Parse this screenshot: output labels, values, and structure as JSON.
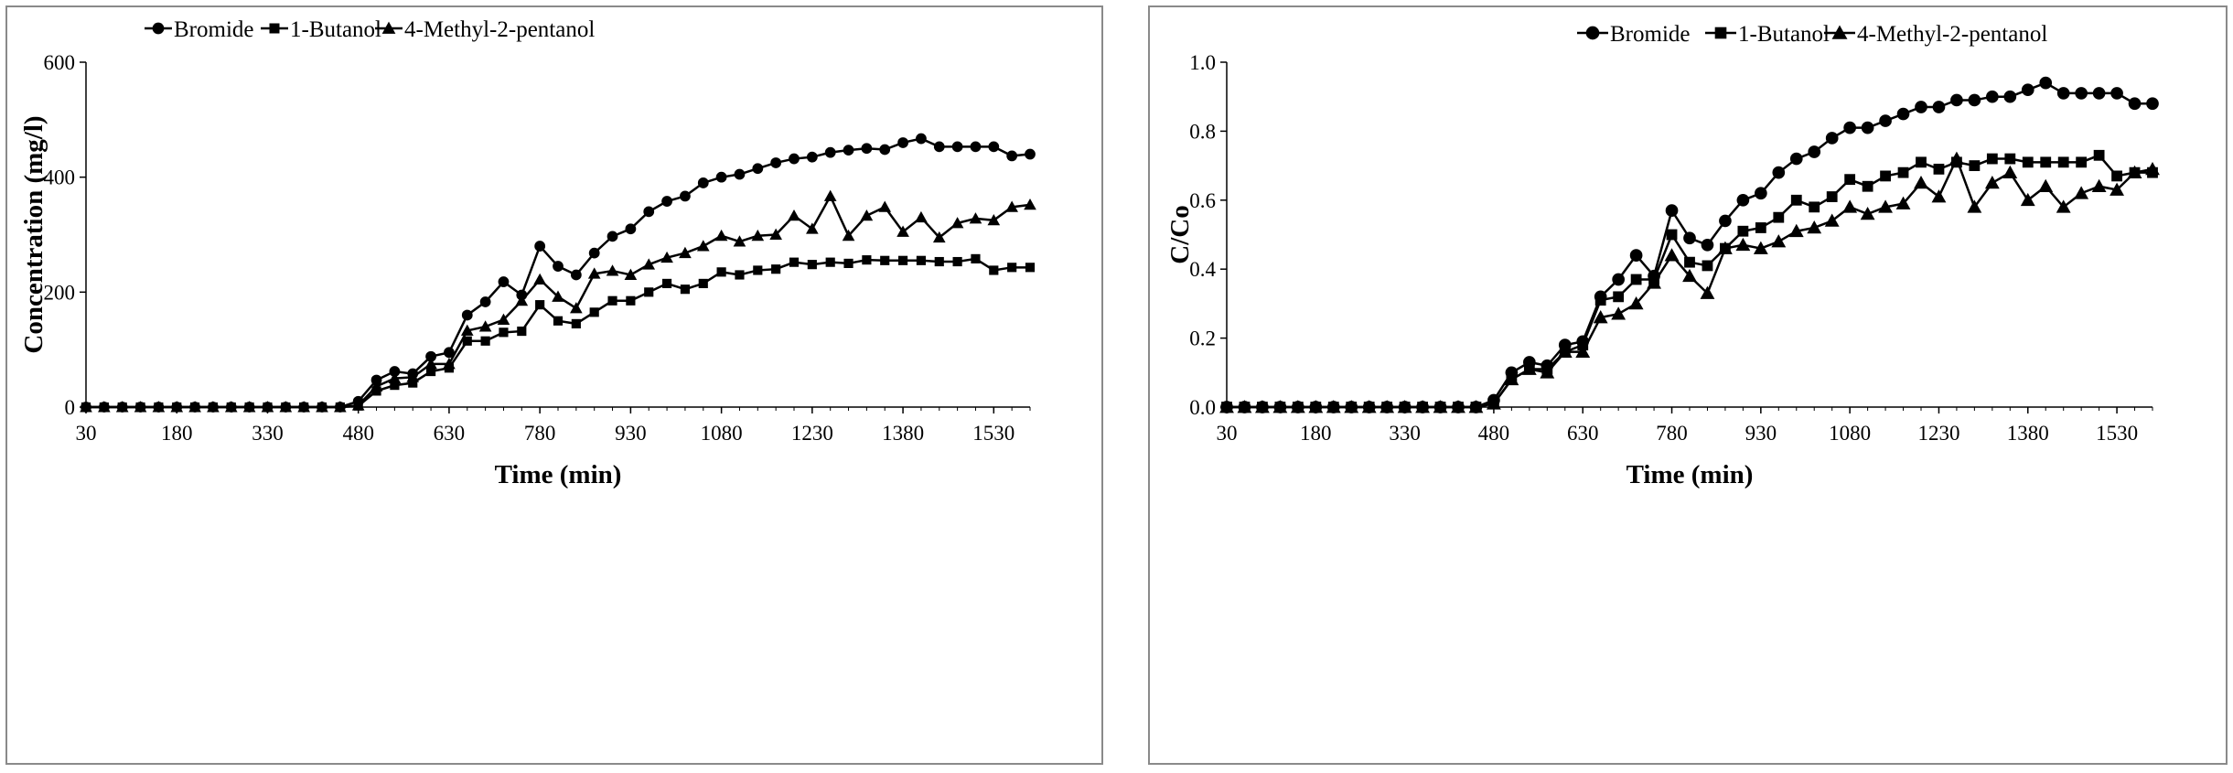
{
  "chart_data": [
    {
      "type": "line",
      "title": "",
      "xlabel": "Time (min)",
      "ylabel": "Concentration (mg/l)",
      "xlim": [
        30,
        1590
      ],
      "ylim": [
        0,
        600
      ],
      "xticks": [
        30,
        180,
        330,
        480,
        630,
        780,
        930,
        1080,
        1230,
        1380,
        1530
      ],
      "yticks": [
        0,
        200,
        400,
        600
      ],
      "xtick_labels": [
        "30",
        "180",
        "330",
        "480",
        "630",
        "780",
        "930",
        "1080",
        "1230",
        "1380",
        "1530"
      ],
      "ytick_labels": [
        "0",
        "200",
        "400",
        "600"
      ],
      "legend_position": "top",
      "x": [
        30,
        60,
        90,
        120,
        150,
        180,
        210,
        240,
        270,
        300,
        330,
        360,
        390,
        420,
        450,
        480,
        510,
        540,
        570,
        600,
        630,
        660,
        690,
        720,
        750,
        780,
        810,
        840,
        870,
        900,
        930,
        960,
        990,
        1020,
        1050,
        1080,
        1110,
        1140,
        1170,
        1200,
        1230,
        1260,
        1290,
        1320,
        1350,
        1380,
        1410,
        1440,
        1470,
        1500,
        1530,
        1560,
        1590
      ],
      "series": [
        {
          "name": "Bromide",
          "marker": "circle",
          "values": [
            0,
            0,
            0,
            0,
            0,
            0,
            0,
            0,
            0,
            0,
            0,
            0,
            0,
            0,
            0,
            10,
            47,
            62,
            58,
            88,
            95,
            160,
            183,
            218,
            195,
            280,
            245,
            230,
            268,
            297,
            310,
            340,
            358,
            367,
            390,
            400,
            405,
            415,
            425,
            432,
            435,
            443,
            447,
            450,
            448,
            460,
            467,
            453,
            453,
            453,
            453,
            437,
            440
          ]
        },
        {
          "name": "1-Butanol",
          "marker": "square",
          "values": [
            0,
            0,
            0,
            0,
            0,
            0,
            0,
            0,
            0,
            0,
            0,
            0,
            0,
            0,
            0,
            2,
            28,
            38,
            42,
            62,
            68,
            115,
            115,
            130,
            132,
            178,
            150,
            145,
            165,
            185,
            185,
            200,
            215,
            205,
            215,
            235,
            230,
            238,
            240,
            252,
            248,
            252,
            250,
            256,
            255,
            255,
            255,
            253,
            253,
            258,
            238,
            243,
            243
          ]
        },
        {
          "name": "4-Methyl-2-pentanol",
          "marker": "triangle",
          "values": [
            0,
            0,
            0,
            0,
            0,
            0,
            0,
            0,
            0,
            0,
            0,
            0,
            0,
            0,
            0,
            3,
            36,
            50,
            52,
            75,
            75,
            133,
            140,
            152,
            185,
            222,
            192,
            172,
            232,
            237,
            230,
            248,
            260,
            268,
            280,
            298,
            288,
            298,
            300,
            333,
            310,
            367,
            298,
            333,
            348,
            305,
            330,
            295,
            320,
            328,
            325,
            348,
            352
          ]
        }
      ]
    },
    {
      "type": "line",
      "title": "",
      "xlabel": "Time (min)",
      "ylabel": "C/Co",
      "xlim": [
        30,
        1590
      ],
      "ylim": [
        0,
        1
      ],
      "xticks": [
        30,
        180,
        330,
        480,
        630,
        780,
        930,
        1080,
        1230,
        1380,
        1530
      ],
      "yticks": [
        0,
        0.2,
        0.4,
        0.6,
        0.8,
        1.0
      ],
      "xtick_labels": [
        "30",
        "180",
        "330",
        "480",
        "630",
        "780",
        "930",
        "1080",
        "1230",
        "1380",
        "1530"
      ],
      "ytick_labels": [
        "0.0",
        "0.2",
        "0.4",
        "0.6",
        "0.8",
        "1.0"
      ],
      "legend_position": "top",
      "x": [
        30,
        60,
        90,
        120,
        150,
        180,
        210,
        240,
        270,
        300,
        330,
        360,
        390,
        420,
        450,
        480,
        510,
        540,
        570,
        600,
        630,
        660,
        690,
        720,
        750,
        780,
        810,
        840,
        870,
        900,
        930,
        960,
        990,
        1020,
        1050,
        1080,
        1110,
        1140,
        1170,
        1200,
        1230,
        1260,
        1290,
        1320,
        1350,
        1380,
        1410,
        1440,
        1470,
        1500,
        1530,
        1560,
        1590
      ],
      "series": [
        {
          "name": "Bromide",
          "marker": "circle",
          "values": [
            0,
            0,
            0,
            0,
            0,
            0,
            0,
            0,
            0,
            0,
            0,
            0,
            0,
            0,
            0,
            0.02,
            0.1,
            0.13,
            0.12,
            0.18,
            0.19,
            0.32,
            0.37,
            0.44,
            0.38,
            0.57,
            0.49,
            0.47,
            0.54,
            0.6,
            0.62,
            0.68,
            0.72,
            0.74,
            0.78,
            0.81,
            0.81,
            0.83,
            0.85,
            0.87,
            0.87,
            0.89,
            0.89,
            0.9,
            0.9,
            0.92,
            0.94,
            0.91,
            0.91,
            0.91,
            0.91,
            0.88,
            0.88
          ]
        },
        {
          "name": "1-Butanol",
          "marker": "square",
          "values": [
            0,
            0,
            0,
            0,
            0,
            0,
            0,
            0,
            0,
            0,
            0,
            0,
            0,
            0,
            0,
            0.01,
            0.08,
            0.11,
            0.11,
            0.16,
            0.18,
            0.31,
            0.32,
            0.37,
            0.37,
            0.5,
            0.42,
            0.41,
            0.46,
            0.51,
            0.52,
            0.55,
            0.6,
            0.58,
            0.61,
            0.66,
            0.64,
            0.67,
            0.68,
            0.71,
            0.69,
            0.71,
            0.7,
            0.72,
            0.72,
            0.71,
            0.71,
            0.71,
            0.71,
            0.73,
            0.67,
            0.68,
            0.68
          ]
        },
        {
          "name": "4-Methyl-2-pentanol",
          "marker": "triangle",
          "values": [
            0,
            0,
            0,
            0,
            0,
            0,
            0,
            0,
            0,
            0,
            0,
            0,
            0,
            0,
            0,
            0.01,
            0.08,
            0.11,
            0.1,
            0.16,
            0.16,
            0.26,
            0.27,
            0.3,
            0.36,
            0.44,
            0.38,
            0.33,
            0.46,
            0.47,
            0.46,
            0.48,
            0.51,
            0.52,
            0.54,
            0.58,
            0.56,
            0.58,
            0.59,
            0.65,
            0.61,
            0.72,
            0.58,
            0.65,
            0.68,
            0.6,
            0.64,
            0.58,
            0.62,
            0.64,
            0.63,
            0.68,
            0.69
          ]
        }
      ]
    }
  ]
}
